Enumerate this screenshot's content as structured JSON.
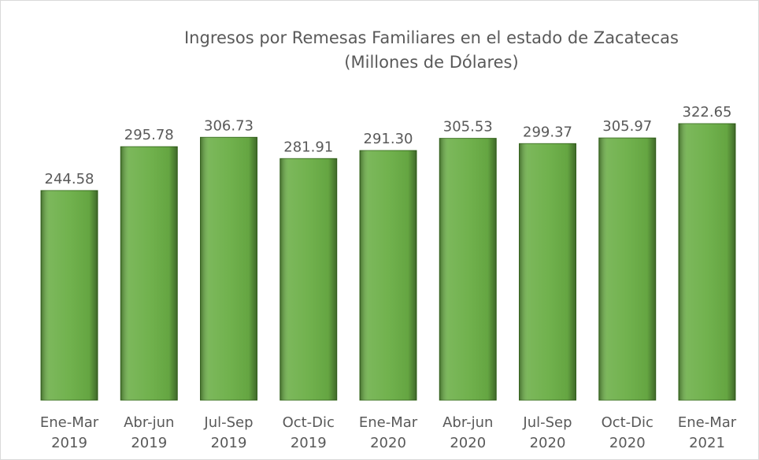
{
  "chart_data": {
    "type": "bar",
    "title": "Ingresos por Remesas Familiares en el estado de Zacatecas",
    "subtitle": "(Millones de Dólares)",
    "categories": [
      "Ene-Mar 2019",
      "Abr-jun 2019",
      "Jul-Sep 2019",
      "Oct-Dic 2019",
      "Ene-Mar 2020",
      "Abr-jun 2020",
      "Jul-Sep 2020",
      "Oct-Dic 2020",
      "Ene-Mar 2021"
    ],
    "values": [
      244.58,
      295.78,
      306.73,
      281.91,
      291.3,
      305.53,
      299.37,
      305.97,
      322.65
    ],
    "value_labels": [
      "244.58",
      "295.78",
      "306.73",
      "281.91",
      "291.30",
      "305.53",
      "299.37",
      "305.97",
      "322.65"
    ],
    "color": "#6aae45"
  }
}
